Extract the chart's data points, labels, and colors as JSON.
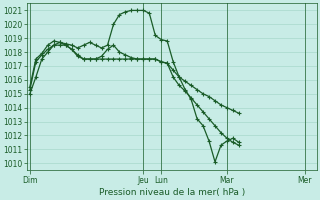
{
  "xlabel": "Pression niveau de la mer( hPa )",
  "ylim": [
    1009.5,
    1021.5
  ],
  "yticks": [
    1010,
    1011,
    1012,
    1013,
    1014,
    1015,
    1016,
    1017,
    1018,
    1019,
    1020,
    1021
  ],
  "background_color": "#c8ece6",
  "grid_color": "#a8d8cc",
  "line_color": "#1a5c28",
  "day_labels": [
    "Dim",
    "",
    "",
    "Jeu",
    "Lun",
    "",
    "Mar",
    "",
    "Mer"
  ],
  "day_tick_labels": [
    "Dim",
    "Jeu",
    "Lun",
    "Mar",
    "Mer"
  ],
  "day_tick_positions": [
    0,
    19,
    22,
    33,
    46
  ],
  "xlim": [
    -0.5,
    48
  ],
  "series1": [
    1015.0,
    1016.2,
    1017.5,
    1018.0,
    1018.5,
    1018.7,
    1018.6,
    1018.5,
    1018.3,
    1018.5,
    1018.7,
    1018.5,
    1018.3,
    1018.5,
    1020.0,
    1020.7,
    1020.9,
    1021.0,
    1021.0,
    1021.0,
    1020.8,
    1019.2,
    1018.9,
    1018.8,
    1017.3,
    1016.2,
    1015.3,
    1014.6,
    1013.2,
    1012.7,
    1011.6,
    1010.1,
    1011.3,
    1011.6,
    1011.8,
    1011.5
  ],
  "series2": [
    1015.3,
    1017.3,
    1017.8,
    1018.2,
    1018.5,
    1018.5,
    1018.5,
    1018.2,
    1017.7,
    1017.5,
    1017.5,
    1017.5,
    1017.5,
    1017.5,
    1017.5,
    1017.5,
    1017.5,
    1017.5,
    1017.5,
    1017.5,
    1017.5,
    1017.5,
    1017.3,
    1017.2,
    1016.2,
    1015.6,
    1015.2,
    1014.7,
    1014.2,
    1013.7,
    1013.2,
    1012.7,
    1012.2,
    1011.8,
    1011.5,
    1011.3
  ],
  "series3": [
    1015.5,
    1017.5,
    1017.9,
    1018.5,
    1018.8,
    1018.7,
    1018.5,
    1018.2,
    1017.8,
    1017.5,
    1017.5,
    1017.5,
    1017.7,
    1018.2,
    1018.5,
    1018.0,
    1017.8,
    1017.6,
    1017.5,
    1017.5,
    1017.5,
    1017.5,
    1017.3,
    1017.2,
    1016.7,
    1016.2,
    1015.9,
    1015.6,
    1015.3,
    1015.0,
    1014.8,
    1014.5,
    1014.2,
    1014.0,
    1013.8,
    1013.6
  ],
  "marker": "+",
  "linewidth": 0.9,
  "markersize": 3.0,
  "fontsize_tick": 5.5,
  "fontsize_xlabel": 6.5
}
